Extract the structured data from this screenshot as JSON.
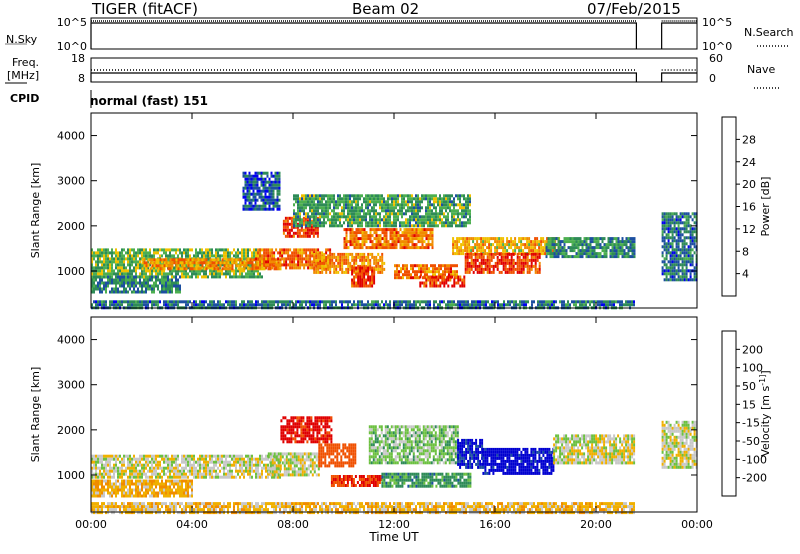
{
  "header": {
    "radar": "TIGER (fitACF)",
    "beam": "Beam 02",
    "date": "07/Feb/2015"
  },
  "nsky_panel": {
    "left_label": "N.Sky",
    "right_label": "N.Search",
    "left_ticks": [
      "10^5",
      "10^0"
    ],
    "right_ticks": [
      "10^5",
      "10^0"
    ]
  },
  "freq_panel": {
    "left_label_top": "Freq.",
    "left_label_bottom": "[MHz]",
    "right_label": "Nave",
    "left_ticks": [
      "18",
      "8"
    ],
    "right_ticks": [
      "60",
      "0"
    ]
  },
  "cpid": {
    "label": "CPID",
    "value": "normal (fast) 151"
  },
  "colors": {
    "power": [
      "#0000ee",
      "#1c4fa0",
      "#2e8b57",
      "#4caf50",
      "#f0c000",
      "#f08c00",
      "#f05000",
      "#e00000"
    ],
    "velocity": [
      "#e00000",
      "#f05000",
      "#f08c00",
      "#f0b000",
      "#c8c8c8",
      "#6cc040",
      "#2e8b57",
      "#1c4fa0",
      "#0000d0"
    ]
  },
  "chart_data": [
    {
      "type": "heatmap",
      "title": "",
      "xlabel": "",
      "ylabel": "Slant Range [km]",
      "x_ticks": [
        "00:00",
        "04:00",
        "08:00",
        "12:00",
        "16:00",
        "20:00",
        "00:00"
      ],
      "y_ticks": [
        "1000",
        "2000",
        "3000",
        "4000"
      ],
      "ylim": [
        180,
        4500
      ],
      "x_range_hours": [
        0,
        24
      ],
      "data_gaps_hours": [
        [
          21.6,
          22.6
        ]
      ],
      "colorbar": {
        "label": "Power [dB]",
        "ticks": [
          "4",
          "8",
          "12",
          "16",
          "20",
          "24",
          "28"
        ],
        "range": [
          0,
          32
        ]
      },
      "regions": [
        {
          "t0": 0.0,
          "t1": 6.8,
          "r0": 900,
          "r1": 1500,
          "value": 14
        },
        {
          "t0": 2.0,
          "t1": 7.5,
          "r0": 1050,
          "r1": 1280,
          "value": 22
        },
        {
          "t0": 0.0,
          "t1": 3.5,
          "r0": 550,
          "r1": 900,
          "value": 9
        },
        {
          "t0": 6.5,
          "t1": 9.5,
          "r0": 1050,
          "r1": 1500,
          "value": 24
        },
        {
          "t0": 7.6,
          "t1": 9.0,
          "r0": 1800,
          "r1": 2200,
          "value": 28
        },
        {
          "t0": 8.8,
          "t1": 11.6,
          "r0": 1000,
          "r1": 1400,
          "value": 22
        },
        {
          "t0": 10.3,
          "t1": 11.2,
          "r0": 700,
          "r1": 1100,
          "value": 28
        },
        {
          "t0": 10.0,
          "t1": 13.5,
          "r0": 1500,
          "r1": 1950,
          "value": 24
        },
        {
          "t0": 12.0,
          "t1": 14.5,
          "r0": 850,
          "r1": 1150,
          "value": 24
        },
        {
          "t0": 13.0,
          "t1": 14.8,
          "r0": 650,
          "r1": 900,
          "value": 28
        },
        {
          "t0": 14.3,
          "t1": 18.5,
          "r0": 1400,
          "r1": 1750,
          "value": 20
        },
        {
          "t0": 14.8,
          "t1": 17.8,
          "r0": 950,
          "r1": 1400,
          "value": 28
        },
        {
          "t0": 18.0,
          "t1": 21.5,
          "r0": 1300,
          "r1": 1750,
          "value": 10
        },
        {
          "t0": 8.0,
          "t1": 15.0,
          "r0": 2000,
          "r1": 2700,
          "value": 12
        },
        {
          "t0": 6.0,
          "t1": 7.5,
          "r0": 2400,
          "r1": 3200,
          "value": 6
        },
        {
          "t0": 22.6,
          "t1": 24.0,
          "r0": 800,
          "r1": 2300,
          "value": 8
        },
        {
          "t0": 0.0,
          "t1": 21.5,
          "r0": 180,
          "r1": 350,
          "value": 8
        }
      ]
    },
    {
      "type": "heatmap",
      "title": "",
      "xlabel": "Time UT",
      "ylabel": "Slant Range [km]",
      "x_ticks": [
        "00:00",
        "04:00",
        "08:00",
        "12:00",
        "16:00",
        "20:00",
        "00:00"
      ],
      "y_ticks": [
        "1000",
        "2000",
        "3000",
        "4000"
      ],
      "ylim": [
        180,
        4500
      ],
      "x_range_hours": [
        0,
        24
      ],
      "data_gaps_hours": [
        [
          21.6,
          22.6
        ]
      ],
      "colorbar": {
        "label": "Velocity [m s^-1]",
        "ticks": [
          "200",
          "100",
          "50",
          "15",
          "-15",
          "-50",
          "-100",
          "-200"
        ],
        "range": [
          -250,
          250
        ]
      },
      "regions": [
        {
          "t0": 0.0,
          "t1": 7.5,
          "r0": 950,
          "r1": 1450,
          "value": 0
        },
        {
          "t0": 0.0,
          "t1": 4.0,
          "r0": 550,
          "r1": 900,
          "value": -40
        },
        {
          "t0": 7.0,
          "t1": 9.0,
          "r0": 1000,
          "r1": 1500,
          "value": 0
        },
        {
          "t0": 7.5,
          "t1": 9.5,
          "r0": 1750,
          "r1": 2300,
          "value": -220
        },
        {
          "t0": 9.0,
          "t1": 10.5,
          "r0": 1200,
          "r1": 1700,
          "value": -150
        },
        {
          "t0": 9.5,
          "t1": 11.5,
          "r0": 750,
          "r1": 1000,
          "value": -200
        },
        {
          "t0": 11.5,
          "t1": 15.0,
          "r0": 750,
          "r1": 1050,
          "value": 70
        },
        {
          "t0": 11.0,
          "t1": 14.5,
          "r0": 1300,
          "r1": 2100,
          "value": 30
        },
        {
          "t0": 14.5,
          "t1": 15.5,
          "r0": 1200,
          "r1": 1800,
          "value": 210
        },
        {
          "t0": 15.5,
          "t1": 18.3,
          "r0": 1050,
          "r1": 1600,
          "value": 230
        },
        {
          "t0": 18.3,
          "t1": 21.5,
          "r0": 1300,
          "r1": 1900,
          "value": 0
        },
        {
          "t0": 22.6,
          "t1": 24.0,
          "r0": 1200,
          "r1": 2200,
          "value": 0
        },
        {
          "t0": 0.0,
          "t1": 21.5,
          "r0": 180,
          "r1": 400,
          "value": -30
        }
      ]
    }
  ]
}
